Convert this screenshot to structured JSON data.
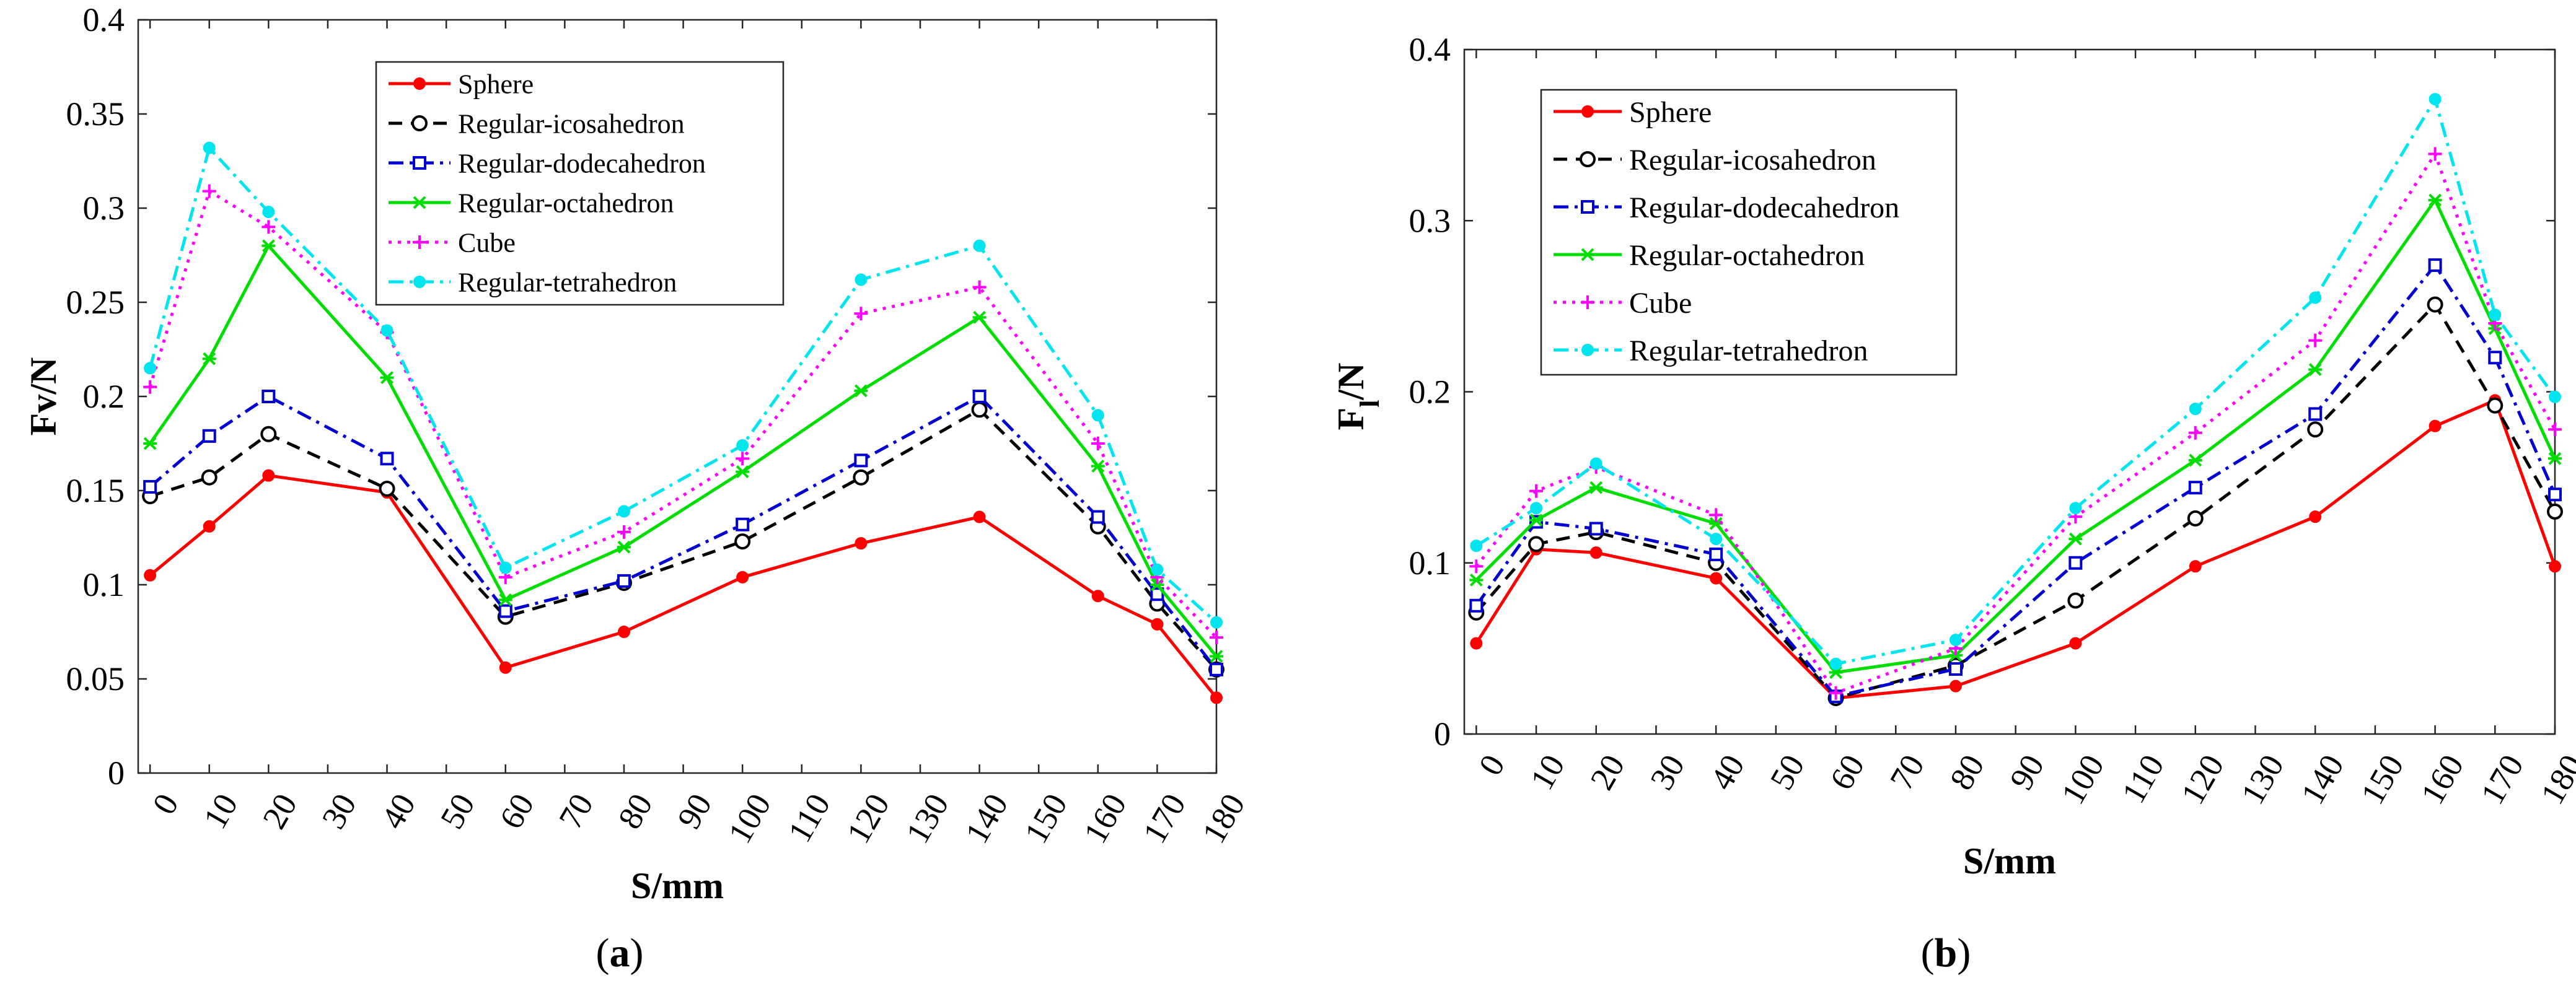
{
  "figure": {
    "label_a": "(a)",
    "label_b": "(b)"
  },
  "chart_data": [
    {
      "type": "line",
      "panel": "a",
      "panel_label": "(a)",
      "title": "",
      "xlabel": "S/mm",
      "ylabel_main": "Fv/N",
      "ylabel_sub": "",
      "ylabel_suffix": "",
      "xlim": [
        -2,
        180
      ],
      "ylim": [
        0,
        0.4
      ],
      "xticks": [
        0,
        10,
        20,
        30,
        40,
        50,
        60,
        70,
        80,
        90,
        100,
        110,
        120,
        130,
        140,
        150,
        160,
        170,
        180
      ],
      "yticks": [
        0,
        0.05,
        0.1,
        0.15,
        0.2,
        0.25,
        0.3,
        0.35,
        0.4
      ],
      "ytick_labels": [
        "0",
        "0.05",
        "0.1",
        "0.15",
        "0.2",
        "0.25",
        "0.3",
        "0.35",
        "0.4"
      ],
      "grid": false,
      "legend_position": "top-center",
      "x": [
        0,
        10,
        20,
        40,
        60,
        80,
        100,
        120,
        140,
        160,
        170,
        180
      ],
      "series": [
        {
          "name": "Sphere",
          "color": "#ff0000",
          "dash": "solid",
          "marker": "dot",
          "values": [
            0.105,
            0.131,
            0.158,
            0.149,
            0.056,
            0.075,
            0.104,
            0.122,
            0.136,
            0.094,
            0.079,
            0.04
          ]
        },
        {
          "name": "Regular-icosahedron",
          "color": "#000000",
          "dash": "dash",
          "marker": "circle",
          "values": [
            0.147,
            0.157,
            0.18,
            0.151,
            0.083,
            0.101,
            0.123,
            0.157,
            0.193,
            0.131,
            0.09,
            0.055
          ]
        },
        {
          "name": "Regular-dodecahedron",
          "color": "#0000d0",
          "dash": "dashdot",
          "marker": "square",
          "values": [
            0.152,
            0.179,
            0.2,
            0.167,
            0.086,
            0.102,
            0.132,
            0.166,
            0.2,
            0.136,
            0.095,
            0.055
          ]
        },
        {
          "name": "Regular-octahedron",
          "color": "#00dd00",
          "dash": "solid",
          "marker": "star",
          "values": [
            0.175,
            0.22,
            0.28,
            0.21,
            0.092,
            0.12,
            0.16,
            0.203,
            0.242,
            0.163,
            0.1,
            0.062
          ]
        },
        {
          "name": "Cube",
          "color": "#ff00ff",
          "dash": "dot",
          "marker": "plus",
          "values": [
            0.205,
            0.309,
            0.29,
            0.234,
            0.104,
            0.128,
            0.167,
            0.244,
            0.258,
            0.175,
            0.104,
            0.072
          ]
        },
        {
          "name": "Regular-tetrahedron",
          "color": "#00e5ee",
          "dash": "dashdot",
          "marker": "dot",
          "values": [
            0.215,
            0.332,
            0.298,
            0.235,
            0.109,
            0.139,
            0.174,
            0.262,
            0.28,
            0.19,
            0.108,
            0.08
          ]
        }
      ]
    },
    {
      "type": "line",
      "panel": "b",
      "panel_label": "(b)",
      "title": "",
      "xlabel": "S/mm",
      "ylabel_main": "F",
      "ylabel_sub": "l",
      "ylabel_suffix": "/N",
      "xlim": [
        -2,
        180
      ],
      "ylim": [
        0,
        0.4
      ],
      "xticks": [
        0,
        10,
        20,
        30,
        40,
        50,
        60,
        70,
        80,
        90,
        100,
        110,
        120,
        130,
        140,
        150,
        160,
        170,
        180
      ],
      "yticks": [
        0,
        0.1,
        0.2,
        0.3,
        0.4
      ],
      "ytick_labels": [
        "0",
        "0.1",
        "0.2",
        "0.3",
        "0.4"
      ],
      "grid": false,
      "legend_position": "top-left",
      "x": [
        0,
        10,
        20,
        40,
        60,
        80,
        100,
        120,
        140,
        160,
        170,
        180
      ],
      "series": [
        {
          "name": "Sphere",
          "color": "#ff0000",
          "dash": "solid",
          "marker": "dot",
          "values": [
            0.053,
            0.108,
            0.106,
            0.091,
            0.021,
            0.028,
            0.053,
            0.098,
            0.127,
            0.18,
            0.195,
            0.098
          ]
        },
        {
          "name": "Regular-icosahedron",
          "color": "#000000",
          "dash": "dash",
          "marker": "circle",
          "values": [
            0.071,
            0.111,
            0.118,
            0.1,
            0.021,
            0.04,
            0.078,
            0.126,
            0.178,
            0.251,
            0.192,
            0.13
          ]
        },
        {
          "name": "Regular-dodecahedron",
          "color": "#0000d0",
          "dash": "dashdot",
          "marker": "square",
          "values": [
            0.075,
            0.124,
            0.12,
            0.105,
            0.022,
            0.038,
            0.1,
            0.144,
            0.187,
            0.274,
            0.22,
            0.14
          ]
        },
        {
          "name": "Regular-octahedron",
          "color": "#00dd00",
          "dash": "solid",
          "marker": "star",
          "values": [
            0.09,
            0.125,
            0.144,
            0.123,
            0.036,
            0.046,
            0.114,
            0.16,
            0.213,
            0.312,
            0.237,
            0.161
          ]
        },
        {
          "name": "Cube",
          "color": "#ff00ff",
          "dash": "dot",
          "marker": "plus",
          "values": [
            0.098,
            0.142,
            0.156,
            0.128,
            0.024,
            0.05,
            0.127,
            0.176,
            0.23,
            0.339,
            0.24,
            0.178
          ]
        },
        {
          "name": "Regular-tetrahedron",
          "color": "#00e5ee",
          "dash": "dashdot",
          "marker": "dot",
          "values": [
            0.11,
            0.132,
            0.158,
            0.114,
            0.041,
            0.055,
            0.132,
            0.19,
            0.255,
            0.371,
            0.245,
            0.197
          ]
        }
      ]
    }
  ]
}
